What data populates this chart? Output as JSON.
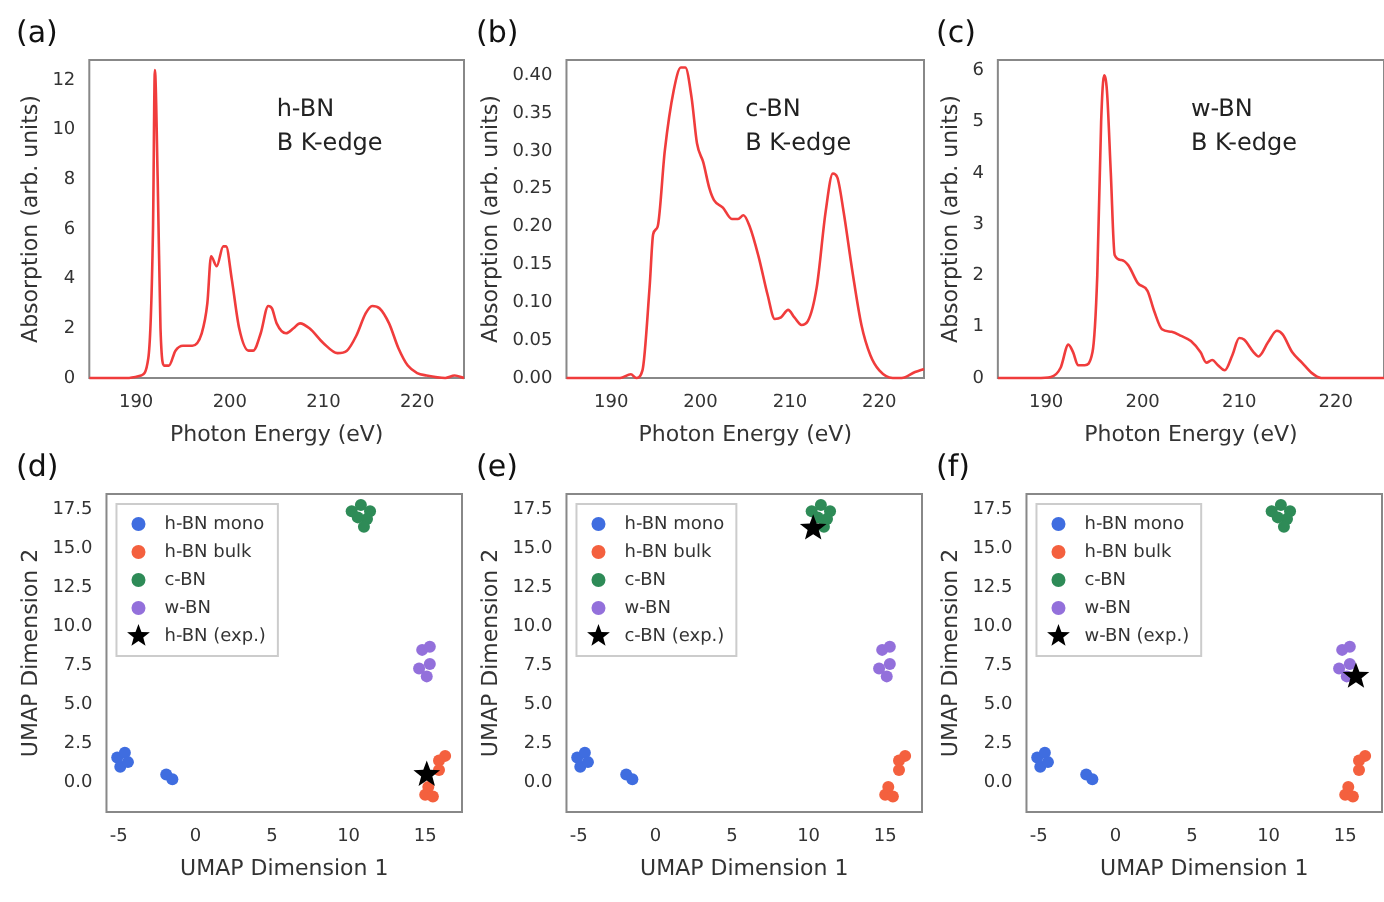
{
  "chart_data": [
    {
      "type": "line",
      "title": "(a)",
      "annotations": [
        "h-BN",
        "B K-edge"
      ],
      "xlabel": "Photon Energy (eV)",
      "ylabel": "Absorption (arb. units)",
      "xlim": [
        185,
        225
      ],
      "xticks": [
        190,
        200,
        210,
        220
      ],
      "ylim": [
        0,
        12.8
      ],
      "yticks": [
        0,
        2,
        4,
        6,
        8,
        10,
        12
      ],
      "color": "#f03c3c",
      "x": [
        185,
        189,
        190.5,
        191.3,
        191.8,
        192.0,
        192.3,
        192.6,
        193.0,
        193.5,
        194.2,
        195,
        196,
        197,
        197.6,
        198,
        198.6,
        199.3,
        199.6,
        200.2,
        201,
        202,
        202.5,
        203.3,
        204.1,
        204.5,
        205,
        206,
        206.8,
        207.5,
        208.5,
        210,
        211.5,
        212.5,
        213.5,
        214.5,
        215.2,
        216,
        217,
        218,
        219,
        220,
        221,
        223,
        224,
        225
      ],
      "values": [
        0,
        0,
        0.1,
        0.8,
        6,
        12.4,
        8,
        2,
        0.5,
        0.5,
        1.1,
        1.3,
        1.3,
        1.8,
        3,
        4.9,
        4.5,
        5.3,
        5.3,
        4,
        2,
        1.1,
        1.1,
        1.8,
        2.9,
        2.8,
        2.2,
        1.8,
        2.0,
        2.2,
        2.0,
        1.4,
        1.0,
        1.1,
        1.7,
        2.6,
        2.9,
        2.8,
        2.2,
        1.2,
        0.5,
        0.2,
        0.1,
        0,
        0.1,
        0
      ]
    },
    {
      "type": "line",
      "title": "(b)",
      "annotations": [
        "c-BN",
        "B K-edge"
      ],
      "xlabel": "Photon Energy (eV)",
      "ylabel": "Absorption (arb. units)",
      "xlim": [
        185,
        225
      ],
      "xticks": [
        190,
        200,
        210,
        220
      ],
      "ylim": [
        0,
        0.42
      ],
      "yticks": [
        {
          "value": 0,
          "label": "0.00"
        },
        {
          "value": 0.05,
          "label": "0.05"
        },
        {
          "value": 0.1,
          "label": "0.10"
        },
        {
          "value": 0.15,
          "label": "0.15"
        },
        {
          "value": 0.2,
          "label": "0.20"
        },
        {
          "value": 0.25,
          "label": "0.25"
        },
        {
          "value": 0.3,
          "label": "0.30"
        },
        {
          "value": 0.35,
          "label": "0.35"
        },
        {
          "value": 0.4,
          "label": "0.40"
        }
      ],
      "color": "#f03c3c",
      "x": [
        185,
        191,
        192.2,
        192.8,
        193.5,
        194.3,
        194.7,
        195.2,
        196,
        197,
        197.8,
        198.3,
        199,
        199.6,
        200.3,
        201,
        201.5,
        202.5,
        203.5,
        204.2,
        204.8,
        205.5,
        206.5,
        207.5,
        208.3,
        209,
        209.8,
        210.5,
        211.3,
        212,
        213,
        214,
        214.8,
        215.3,
        216,
        217,
        218,
        219,
        220,
        221.5,
        222.5,
        224,
        225
      ],
      "values": [
        0,
        0,
        0.005,
        0,
        0.01,
        0.12,
        0.19,
        0.2,
        0.3,
        0.38,
        0.41,
        0.41,
        0.37,
        0.31,
        0.285,
        0.25,
        0.235,
        0.225,
        0.21,
        0.21,
        0.215,
        0.2,
        0.16,
        0.11,
        0.078,
        0.08,
        0.09,
        0.08,
        0.07,
        0.075,
        0.12,
        0.22,
        0.27,
        0.265,
        0.22,
        0.14,
        0.07,
        0.03,
        0.01,
        0,
        0,
        0.008,
        0.012
      ]
    },
    {
      "type": "line",
      "title": "(c)",
      "annotations": [
        "w-BN",
        "B K-edge"
      ],
      "xlabel": "Photon Energy (eV)",
      "ylabel": "Absorption (arb. units)",
      "xlim": [
        185,
        225
      ],
      "xticks": [
        190,
        200,
        210,
        220
      ],
      "ylim": [
        0,
        6.2
      ],
      "yticks": [
        0,
        1,
        2,
        3,
        4,
        5,
        6
      ],
      "color": "#f03c3c",
      "x": [
        185,
        189,
        190.5,
        191.5,
        192.3,
        192.8,
        193.3,
        194,
        194.8,
        195.3,
        195.7,
        196,
        196.3,
        196.7,
        197.1,
        197.8,
        198.5,
        199.5,
        200.5,
        201.2,
        202,
        203,
        204,
        205,
        206,
        206.6,
        207.2,
        207.8,
        208.5,
        209.3,
        210,
        210.5,
        211.5,
        212,
        213,
        213.9,
        214.5,
        215.5,
        216.5,
        217.5,
        218.5,
        225
      ],
      "values": [
        0,
        0,
        0.02,
        0.2,
        0.65,
        0.5,
        0.25,
        0.25,
        0.5,
        2,
        5,
        5.9,
        5.6,
        4,
        2.4,
        2.3,
        2.2,
        1.85,
        1.7,
        1.3,
        0.95,
        0.9,
        0.82,
        0.72,
        0.5,
        0.3,
        0.35,
        0.25,
        0.15,
        0.45,
        0.78,
        0.75,
        0.5,
        0.42,
        0.7,
        0.92,
        0.85,
        0.5,
        0.3,
        0.1,
        0,
        0
      ]
    },
    {
      "type": "scatter",
      "title": "(d)",
      "xlabel": "UMAP Dimension 1",
      "ylabel": "UMAP Dimension 2",
      "xlim": [
        -5.8,
        17.4
      ],
      "xticks": [
        -5,
        0,
        5,
        10,
        15
      ],
      "ylim": [
        -1.9,
        18.5
      ],
      "yticks": [
        {
          "value": 0,
          "label": "0.0"
        },
        {
          "value": 2.5,
          "label": "2.5"
        },
        {
          "value": 5,
          "label": "5.0"
        },
        {
          "value": 7.5,
          "label": "7.5"
        },
        {
          "value": 10,
          "label": "10.0"
        },
        {
          "value": 12.5,
          "label": "12.5"
        },
        {
          "value": 15,
          "label": "15.0"
        },
        {
          "value": 17.5,
          "label": "17.5"
        }
      ],
      "legend": "top left",
      "marker": "circle",
      "series": [
        {
          "name": "h-BN mono",
          "color": "#3f6de0",
          "x": [
            -5.1,
            -4.6,
            -4.9,
            -4.4,
            -1.9,
            -1.5
          ],
          "values": [
            1.6,
            1.9,
            1.0,
            1.3,
            0.5,
            0.2
          ]
        },
        {
          "name": "h-BN bulk",
          "color": "#f4603e",
          "x": [
            15.2,
            15.0,
            15.5,
            16.3,
            15.9,
            15.9
          ],
          "values": [
            -0.3,
            -0.8,
            -0.9,
            1.7,
            1.4,
            0.8
          ]
        },
        {
          "name": "c-BN",
          "color": "#2e8b57",
          "x": [
            10.2,
            10.8,
            11.4,
            10.6,
            11.2,
            11.0
          ],
          "values": [
            17.4,
            17.8,
            17.4,
            17.0,
            16.9,
            16.4
          ]
        },
        {
          "name": "w-BN",
          "color": "#9370db",
          "x": [
            14.8,
            15.3,
            14.6,
            15.3,
            15.1
          ],
          "values": [
            8.5,
            8.7,
            7.3,
            7.6,
            6.8
          ]
        },
        {
          "name": "h-BN (exp.)",
          "color": "#000000",
          "marker": "star",
          "x": [
            15.1
          ],
          "values": [
            0.5
          ]
        }
      ]
    },
    {
      "type": "scatter",
      "title": "(e)",
      "xlabel": "UMAP Dimension 1",
      "ylabel": "UMAP Dimension 2",
      "xlim": [
        -5.8,
        17.4
      ],
      "xticks": [
        -5,
        0,
        5,
        10,
        15
      ],
      "ylim": [
        -1.9,
        18.5
      ],
      "yticks": [
        {
          "value": 0,
          "label": "0.0"
        },
        {
          "value": 2.5,
          "label": "2.5"
        },
        {
          "value": 5,
          "label": "5.0"
        },
        {
          "value": 7.5,
          "label": "7.5"
        },
        {
          "value": 10,
          "label": "10.0"
        },
        {
          "value": 12.5,
          "label": "12.5"
        },
        {
          "value": 15,
          "label": "15.0"
        },
        {
          "value": 17.5,
          "label": "17.5"
        }
      ],
      "legend": "top left",
      "marker": "circle",
      "series": [
        {
          "name": "h-BN mono",
          "color": "#3f6de0",
          "x": [
            -5.1,
            -4.6,
            -4.9,
            -4.4,
            -1.9,
            -1.5
          ],
          "values": [
            1.6,
            1.9,
            1.0,
            1.3,
            0.5,
            0.2
          ]
        },
        {
          "name": "h-BN bulk",
          "color": "#f4603e",
          "x": [
            15.2,
            15.0,
            15.5,
            16.3,
            15.9,
            15.9
          ],
          "values": [
            -0.3,
            -0.8,
            -0.9,
            1.7,
            1.4,
            0.8
          ]
        },
        {
          "name": "c-BN",
          "color": "#2e8b57",
          "x": [
            10.2,
            10.8,
            11.4,
            10.6,
            11.2,
            11.0
          ],
          "values": [
            17.4,
            17.8,
            17.4,
            17.0,
            16.9,
            16.4
          ]
        },
        {
          "name": "w-BN",
          "color": "#9370db",
          "x": [
            14.8,
            15.3,
            14.6,
            15.3,
            15.1
          ],
          "values": [
            8.5,
            8.7,
            7.3,
            7.6,
            6.8
          ]
        },
        {
          "name": "c-BN (exp.)",
          "color": "#000000",
          "marker": "star",
          "x": [
            10.3
          ],
          "values": [
            16.3
          ]
        }
      ]
    },
    {
      "type": "scatter",
      "title": "(f)",
      "xlabel": "UMAP Dimension 1",
      "ylabel": "UMAP Dimension 2",
      "xlim": [
        -5.8,
        17.4
      ],
      "xticks": [
        -5,
        0,
        5,
        10,
        15
      ],
      "ylim": [
        -1.9,
        18.5
      ],
      "yticks": [
        {
          "value": 0,
          "label": "0.0"
        },
        {
          "value": 2.5,
          "label": "2.5"
        },
        {
          "value": 5,
          "label": "5.0"
        },
        {
          "value": 7.5,
          "label": "7.5"
        },
        {
          "value": 10,
          "label": "10.0"
        },
        {
          "value": 12.5,
          "label": "12.5"
        },
        {
          "value": 15,
          "label": "15.0"
        },
        {
          "value": 17.5,
          "label": "17.5"
        }
      ],
      "legend": "top left",
      "marker": "circle",
      "series": [
        {
          "name": "h-BN mono",
          "color": "#3f6de0",
          "x": [
            -5.1,
            -4.6,
            -4.9,
            -4.4,
            -1.9,
            -1.5
          ],
          "values": [
            1.6,
            1.9,
            1.0,
            1.3,
            0.5,
            0.2
          ]
        },
        {
          "name": "h-BN bulk",
          "color": "#f4603e",
          "x": [
            15.2,
            15.0,
            15.5,
            16.3,
            15.9,
            15.9
          ],
          "values": [
            -0.3,
            -0.8,
            -0.9,
            1.7,
            1.4,
            0.8
          ]
        },
        {
          "name": "c-BN",
          "color": "#2e8b57",
          "x": [
            10.2,
            10.8,
            11.4,
            10.6,
            11.2,
            11.0
          ],
          "values": [
            17.4,
            17.8,
            17.4,
            17.0,
            16.9,
            16.4
          ]
        },
        {
          "name": "w-BN",
          "color": "#9370db",
          "x": [
            14.8,
            15.3,
            14.6,
            15.3,
            15.1
          ],
          "values": [
            8.5,
            8.7,
            7.3,
            7.6,
            6.8
          ]
        },
        {
          "name": "w-BN (exp.)",
          "color": "#000000",
          "marker": "star",
          "x": [
            15.7
          ],
          "values": [
            6.8
          ]
        }
      ]
    }
  ]
}
